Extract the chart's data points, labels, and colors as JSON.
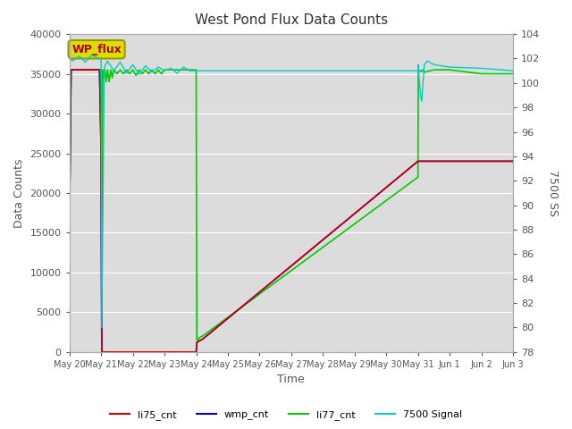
{
  "title": "West Pond Flux Data Counts",
  "xlabel": "Time",
  "ylabel_left": "Data Counts",
  "ylabel_right": "7500 SS",
  "background_color": "#dcdcdc",
  "ylim_left": [
    0,
    40000
  ],
  "ylim_right": [
    78,
    104
  ],
  "yticks_left": [
    0,
    5000,
    10000,
    15000,
    20000,
    25000,
    30000,
    35000,
    40000
  ],
  "yticks_right": [
    78,
    80,
    82,
    84,
    86,
    88,
    90,
    92,
    94,
    96,
    98,
    100,
    102,
    104
  ],
  "legend_labels": [
    "li75_cnt",
    "wmp_cnt",
    "li77_cnt",
    "7500 Signal"
  ],
  "legend_colors": [
    "#cc0000",
    "#0000cc",
    "#00cc00",
    "#00cccc"
  ],
  "wp_flux_box_facecolor": "#dddd00",
  "wp_flux_box_edgecolor": "#999900",
  "wp_flux_text_color": "#aa0000",
  "days": [
    "May 20",
    "May 21",
    "May 22",
    "May 23",
    "May 24",
    "May 25",
    "May 26",
    "May 27",
    "May 28",
    "May 29",
    "May 30",
    "May 31",
    "Jun 1",
    "Jun 2",
    "Jun 3"
  ],
  "li77_x": [
    0,
    0.05,
    0.1,
    0.5,
    0.95,
    1.0,
    1.02,
    1.05,
    1.08,
    1.12,
    1.16,
    1.2,
    1.25,
    1.3,
    1.35,
    1.4,
    1.5,
    1.6,
    1.7,
    1.8,
    1.9,
    2.0,
    2.1,
    2.2,
    2.3,
    2.4,
    2.5,
    2.6,
    2.7,
    2.8,
    2.9,
    3.0,
    3.5,
    3.9,
    4.0,
    4.02,
    4.05,
    4.1,
    4.2,
    11.0,
    11.01,
    11.02,
    11.05,
    11.1,
    11.15,
    11.2,
    11.5,
    12.0,
    13.0,
    14.0
  ],
  "li77_y": [
    16000,
    35500,
    35500,
    35500,
    35500,
    35500,
    6500,
    35500,
    34500,
    35500,
    34000,
    35500,
    34000,
    35500,
    34500,
    35500,
    35000,
    35500,
    35000,
    35500,
    35000,
    35500,
    34800,
    35500,
    35000,
    35500,
    35000,
    35500,
    35000,
    35500,
    35000,
    35500,
    35500,
    35500,
    35500,
    1500,
    1500,
    1800,
    2000,
    22000,
    35500,
    35500,
    35400,
    35300,
    35500,
    35200,
    35500,
    35500,
    35000,
    35000
  ],
  "wmp_x": [
    0,
    0.05,
    0.5,
    0.95,
    1.0,
    1.02,
    1.05,
    1.2,
    1.5,
    1.9,
    2.0,
    3.9,
    4.0,
    4.02,
    4.1,
    4.2,
    11.0,
    11.05,
    12.0,
    13.0,
    14.0
  ],
  "wmp_y": [
    16000,
    35500,
    35500,
    35500,
    25000,
    0,
    0,
    0,
    0,
    0,
    0,
    0,
    0,
    1200,
    1400,
    1600,
    24000,
    24000,
    24000,
    24000,
    24000
  ],
  "li75_x": [
    0,
    0.05,
    0.5,
    0.95,
    1.0,
    1.02,
    1.05,
    1.2,
    1.5,
    1.9,
    2.0,
    3.9,
    4.0,
    4.02,
    4.1,
    4.2,
    11.0,
    11.05,
    12.0,
    13.0,
    14.0
  ],
  "li75_y": [
    16000,
    35500,
    35500,
    35500,
    25000,
    0,
    0,
    0,
    0,
    0,
    0,
    0,
    0,
    1200,
    1400,
    1600,
    24000,
    24000,
    24000,
    24000,
    24000
  ],
  "sig_x": [
    0,
    0.1,
    0.3,
    0.5,
    0.7,
    0.9,
    1.0,
    1.02,
    1.1,
    1.2,
    1.4,
    1.6,
    1.8,
    2.0,
    2.2,
    2.4,
    2.6,
    2.8,
    3.0,
    3.2,
    3.4,
    3.6,
    3.8,
    4.0,
    11.0,
    11.01,
    11.05,
    11.08,
    11.12,
    11.16,
    11.2,
    11.3,
    11.5,
    12.0,
    13.0,
    14.0
  ],
  "sig_y": [
    102.0,
    101.8,
    102.2,
    101.7,
    102.3,
    102.0,
    102.0,
    80.0,
    101.3,
    101.8,
    101.0,
    101.7,
    100.8,
    101.5,
    100.7,
    101.4,
    100.9,
    101.3,
    101.0,
    101.2,
    100.8,
    101.3,
    101.0,
    101.0,
    101.0,
    101.5,
    100.0,
    99.0,
    98.5,
    100.0,
    101.5,
    101.8,
    101.5,
    101.3,
    101.2,
    101.0
  ]
}
